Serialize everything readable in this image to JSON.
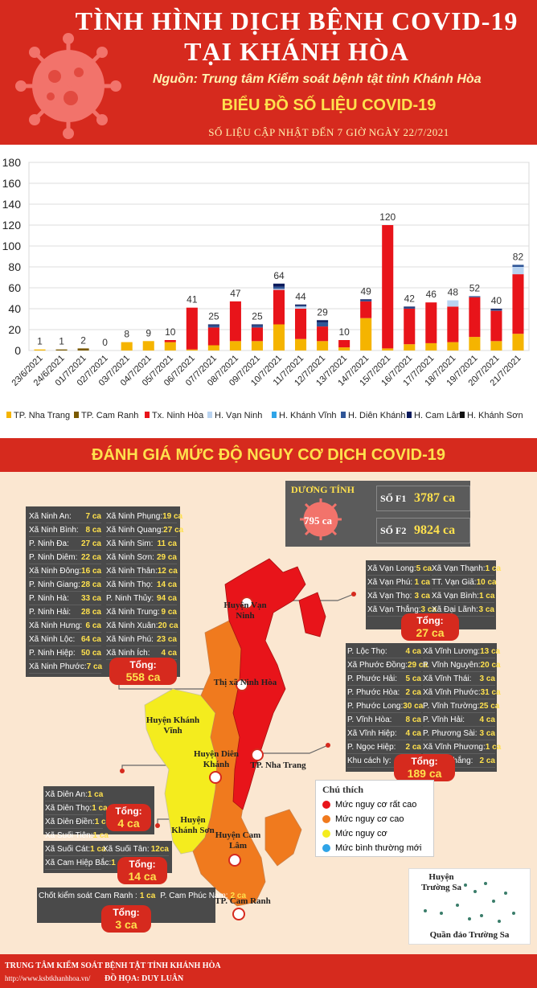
{
  "header": {
    "title_line1": "TÌNH HÌNH DỊCH BỆNH COVID-19",
    "title_line2": "TẠI KHÁNH HÒA",
    "source": "Nguồn: Trung tâm Kiểm soát bệnh tật tỉnh Khánh Hòa",
    "chart_title": "BIỂU ĐỒ SỐ LIỆU COVID-19",
    "chart_subtitle": "SỐ LIỆU CẬP NHẬT ĐẾN 7 GIỜ NGÀY 22/7/2021"
  },
  "chart_data": {
    "type": "bar",
    "stacked": true,
    "categories": [
      "23/6/2021",
      "24/6/2021",
      "01/7/2021",
      "02/7/2021",
      "03/7/2021",
      "04/7/2021",
      "05/7/2021",
      "06/7/2021",
      "07/7/2021",
      "08/7/2021",
      "09/7/2021",
      "10/7/2021",
      "11/7/2021",
      "12/7/2021",
      "13/7/2021",
      "14/7/2021",
      "15/7/2021",
      "16/7/2021",
      "17/7/2021",
      "18/7/2021",
      "19/7/2021",
      "20/7/2021",
      "21/7/2021"
    ],
    "totals": [
      1,
      1,
      2,
      0,
      8,
      9,
      10,
      41,
      25,
      47,
      25,
      64,
      44,
      29,
      10,
      49,
      120,
      42,
      46,
      48,
      52,
      40,
      82
    ],
    "yticks": [
      0,
      20,
      40,
      60,
      80,
      100,
      120,
      140,
      160,
      180
    ],
    "ylim": [
      0,
      180
    ],
    "grid": true,
    "legend_position": "bottom",
    "series": [
      {
        "name": "TP. Nha Trang",
        "color": "#f5b400",
        "values": [
          1,
          0,
          0,
          0,
          8,
          9,
          8,
          1,
          5,
          9,
          9,
          25,
          11,
          9,
          3,
          31,
          2,
          6,
          7,
          8,
          13,
          9,
          16
        ]
      },
      {
        "name": "TP. Cam Ranh",
        "color": "#7a5a00",
        "values": [
          0,
          1,
          2,
          0,
          0,
          0,
          0,
          0,
          0,
          0,
          0,
          0,
          0,
          0,
          0,
          0,
          0,
          0,
          0,
          0,
          0,
          0,
          0
        ]
      },
      {
        "name": "Tx. Ninh Hòa",
        "color": "#e8141a",
        "values": [
          0,
          0,
          0,
          0,
          0,
          0,
          2,
          40,
          17,
          38,
          13,
          33,
          29,
          14,
          7,
          16,
          118,
          34,
          39,
          34,
          38,
          29,
          57
        ]
      },
      {
        "name": "H. Vạn Ninh",
        "color": "#b9d3f0",
        "values": [
          0,
          0,
          0,
          0,
          0,
          0,
          0,
          0,
          0,
          0,
          0,
          1,
          2,
          0,
          0,
          0,
          0,
          0,
          0,
          6,
          0,
          0,
          7
        ]
      },
      {
        "name": "H. Khánh Vĩnh",
        "color": "#2fa4e7",
        "values": [
          0,
          0,
          0,
          0,
          0,
          0,
          0,
          0,
          0,
          0,
          0,
          0,
          0,
          0,
          0,
          0,
          0,
          0,
          0,
          0,
          0,
          0,
          0
        ]
      },
      {
        "name": "H. Diên Khánh",
        "color": "#2f5597",
        "values": [
          0,
          0,
          0,
          0,
          0,
          0,
          0,
          0,
          2,
          0,
          2,
          2,
          1,
          4,
          0,
          1,
          0,
          1,
          0,
          0,
          1,
          1,
          2
        ]
      },
      {
        "name": "H. Cam Lâm",
        "color": "#0b1a5c",
        "values": [
          0,
          0,
          0,
          0,
          0,
          0,
          0,
          0,
          1,
          0,
          1,
          3,
          1,
          2,
          0,
          1,
          0,
          1,
          0,
          0,
          0,
          1,
          0
        ]
      },
      {
        "name": "H. Khánh Sơn",
        "color": "#111111",
        "values": [
          0,
          0,
          0,
          0,
          0,
          0,
          0,
          0,
          0,
          0,
          0,
          0,
          0,
          0,
          0,
          0,
          0,
          0,
          0,
          0,
          0,
          0,
          0
        ]
      }
    ]
  },
  "risk": {
    "title": "ĐÁNH GIÁ MỨC ĐỘ NGUY CƠ DỊCH COVID-19",
    "positive_label": "DƯƠNG TÍNH",
    "positive_value": "795 ca",
    "f1_label": "SỐ F1",
    "f1_value": "3787 ca",
    "f2_label": "SỐ F2",
    "f2_value": "9824 ca"
  },
  "ninh_hoa": {
    "col1": [
      {
        "name": "Xã Ninh An:",
        "value": "7 ca"
      },
      {
        "name": "Xã Ninh Bình:",
        "value": "8 ca"
      },
      {
        "name": "P. Ninh Đa:",
        "value": "27 ca"
      },
      {
        "name": "P. Ninh Diêm:",
        "value": "22 ca"
      },
      {
        "name": "Xã Ninh Đông:",
        "value": "16 ca"
      },
      {
        "name": "P. Ninh Giang:",
        "value": "28 ca"
      },
      {
        "name": "P. Ninh Hà:",
        "value": "33 ca"
      },
      {
        "name": "P. Ninh Hải:",
        "value": "28 ca"
      },
      {
        "name": "Xã Ninh Hưng:",
        "value": "6 ca"
      },
      {
        "name": "Xã Ninh Lộc:",
        "value": "64 ca"
      },
      {
        "name": "P. Ninh Hiệp:",
        "value": "50 ca"
      },
      {
        "name": "Xã Ninh Phước:",
        "value": "7 ca"
      }
    ],
    "col2": [
      {
        "name": "Xã Ninh Phụng:",
        "value": "19 ca"
      },
      {
        "name": "Xã Ninh Quang:",
        "value": "27 ca"
      },
      {
        "name": "Xã Ninh Sim:",
        "value": "11 ca"
      },
      {
        "name": "Xã Ninh Sơn:",
        "value": "29 ca"
      },
      {
        "name": "Xã Ninh Thân:",
        "value": "12 ca"
      },
      {
        "name": "Xã Ninh Thọ:",
        "value": "14 ca"
      },
      {
        "name": "P. Ninh Thủy:",
        "value": "94 ca"
      },
      {
        "name": "Xã Ninh Trung:",
        "value": "9 ca"
      },
      {
        "name": "Xã Ninh Xuân:",
        "value": "20 ca"
      },
      {
        "name": "Xã Ninh Phú:",
        "value": "23 ca"
      },
      {
        "name": "Xã Ninh Ích:",
        "value": "4 ca"
      }
    ],
    "total_label": "Tổng:",
    "total_value": "558 ca"
  },
  "van_ninh": {
    "col1": [
      {
        "name": "Xã Vạn Long:",
        "value": "5 ca"
      },
      {
        "name": "Xã Vạn Phú:",
        "value": "1 ca"
      },
      {
        "name": "Xã Vạn Thọ:",
        "value": "3 ca"
      },
      {
        "name": "Xã Vạn Thắng:",
        "value": "3 ca"
      }
    ],
    "col2": [
      {
        "name": "Xã Vạn Thạnh:",
        "value": "1 ca"
      },
      {
        "name": "TT. Vạn Giã:",
        "value": "10 ca"
      },
      {
        "name": "Xã Vạn Bình:",
        "value": "1 ca"
      },
      {
        "name": "Xã Đại Lãnh:",
        "value": "3 ca"
      }
    ],
    "total_label": "Tổng:",
    "total_value": "27 ca"
  },
  "nha_trang": {
    "col1": [
      {
        "name": "P. Lộc Thọ:",
        "value": "4 ca"
      },
      {
        "name": "Xã Phước Đồng:",
        "value": "29 ca"
      },
      {
        "name": "P. Phước Hải:",
        "value": "5 ca"
      },
      {
        "name": "P. Phước Hòa:",
        "value": "2 ca"
      },
      {
        "name": "P. Phước Long:",
        "value": "30 ca"
      },
      {
        "name": "P. Vĩnh Hòa:",
        "value": "8 ca"
      },
      {
        "name": "Xã Vĩnh Hiệp:",
        "value": "4 ca"
      },
      {
        "name": "P. Ngọc Hiệp:",
        "value": "2 ca"
      },
      {
        "name": "Khu cách ly:",
        "value": "3 ca"
      }
    ],
    "col2": [
      {
        "name": "Xã Vĩnh Lương:",
        "value": "13 ca"
      },
      {
        "name": "P. Vĩnh Nguyên:",
        "value": "20 ca"
      },
      {
        "name": "Xã Vĩnh Thái:",
        "value": "3 ca"
      },
      {
        "name": "Xã Vĩnh Phước:",
        "value": "31 ca"
      },
      {
        "name": "P. Vĩnh Trường:",
        "value": "25 ca"
      },
      {
        "name": "P. Vĩnh Hải:",
        "value": "4 ca"
      },
      {
        "name": "P. Phương Sài:",
        "value": "3 ca"
      },
      {
        "name": "Xã Vĩnh Phương:",
        "value": "1 ca"
      },
      {
        "name": "P. Vạn Thắng:",
        "value": "2 ca"
      }
    ],
    "total_label": "Tổng:",
    "total_value": "189 ca"
  },
  "dien_khanh": {
    "rows": [
      {
        "name": "Xã Diên An:",
        "value": "1 ca"
      },
      {
        "name": "Xã Diên Thọ:",
        "value": "1 ca"
      },
      {
        "name": "Xã Diên Điền:",
        "value": "1 ca"
      },
      {
        "name": "Xã Suối Tiên:",
        "value": "1 ca"
      }
    ],
    "total_label": "Tổng:",
    "total_value": "4 ca"
  },
  "cam_lam": {
    "rows": [
      {
        "name": "Xã Suối Cát:",
        "value": "1 ca"
      },
      {
        "name": "Xã Suối Tân:",
        "value": "12ca"
      },
      {
        "name": "Xã Cam Hiệp Bắc:",
        "value": "1 ca"
      }
    ],
    "total_label": "Tổng:",
    "total_value": "14 ca"
  },
  "cam_ranh": {
    "rows": [
      {
        "name": "Chốt kiểm soát Cam Ranh :",
        "value": "1 ca"
      },
      {
        "name": "P. Cam Phúc Nam:",
        "value": "2 ca"
      }
    ],
    "total_label": "Tổng:",
    "total_value": "3 ca"
  },
  "regions": {
    "van_ninh": "Huyện Vạn Ninh",
    "ninh_hoa": "Thị xã Ninh Hòa",
    "khanh_vinh": "Huyện Khánh Vĩnh",
    "dien_khanh": "Huyện Diên Khánh",
    "nha_trang": "TP. Nha Trang",
    "khanh_son": "Huyện Khánh Sơn",
    "cam_lam": "Huyện Cam Lâm",
    "cam_ranh": "TP. Cam Ranh",
    "truong_sa": "Huyện Trường Sa",
    "truong_sa_islands": "Quần đảo Trường Sa"
  },
  "legend": {
    "title": "Chú thích",
    "items": [
      {
        "label": "Mức nguy cơ rất cao",
        "color": "#e8141a"
      },
      {
        "label": "Mức nguy cơ cao",
        "color": "#f07a1e"
      },
      {
        "label": "Mức nguy cơ",
        "color": "#f4ec1e"
      },
      {
        "label": "Mức bình thường mới",
        "color": "#2fa4e7"
      }
    ]
  },
  "colors": {
    "very_high": "#e8141a",
    "high": "#f07a1e",
    "medium": "#f4ec1e",
    "brand_red": "#d62a1e"
  },
  "footer": {
    "org": "TRUNG TÂM KIỂM SOÁT BỆNH TẬT TỈNH KHÁNH HÒA",
    "url": "http://www.ksbtkhanhhoa.vn/",
    "credit": "ĐỒ HỌA: DUY LUÂN"
  }
}
